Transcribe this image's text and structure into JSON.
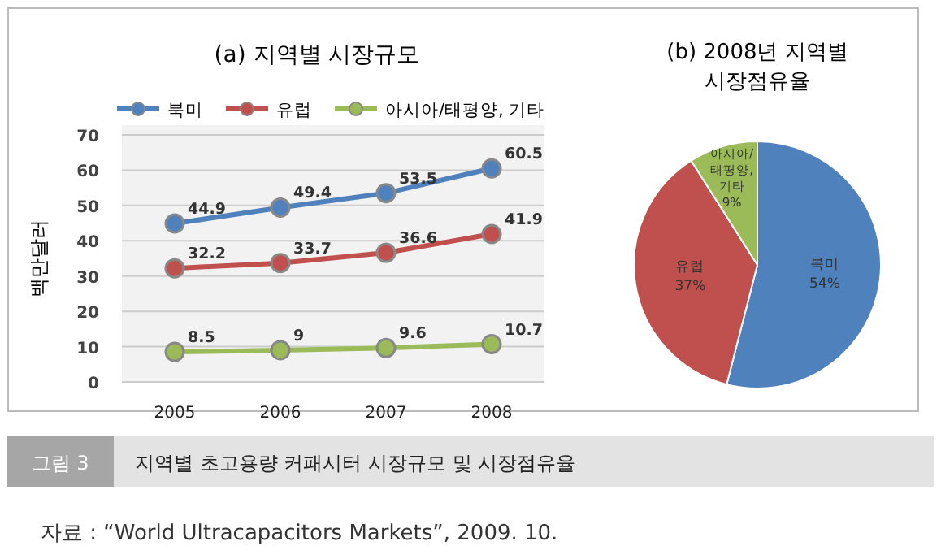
{
  "chart_data": [
    {
      "type": "line",
      "title": "(a) 지역별 시장규모",
      "ylabel": "백만달러",
      "categories": [
        "2005",
        "2006",
        "2007",
        "2008"
      ],
      "series": [
        {
          "name": "북미",
          "color": "#4f81bd",
          "values": [
            44.9,
            49.4,
            53.5,
            60.5
          ]
        },
        {
          "name": "유럽",
          "color": "#c0504d",
          "values": [
            32.2,
            33.7,
            36.6,
            41.9
          ]
        },
        {
          "name": "아시아/태평양, 기타",
          "color": "#9bbb59",
          "values": [
            8.5,
            9,
            9.6,
            10.7
          ]
        }
      ],
      "ylim": [
        0,
        70
      ],
      "yticks": [
        0,
        10,
        20,
        30,
        40,
        50,
        60,
        70
      ],
      "grid": "y",
      "legend": "top",
      "marker": "circle",
      "data_labels": true,
      "annotations": [
        "그림 3",
        "지역별 초고용량 커패시터 시장규모 및 시장점유율",
        "자료 : “World Ultracapacitors Markets”, 2009. 10."
      ]
    },
    {
      "type": "pie",
      "title": "(b) 2008년 지역별 시장점유율",
      "categories": [
        "북미",
        "유럽",
        "아시아/태평양, 기타"
      ],
      "values": [
        54,
        37,
        9
      ],
      "colors": [
        "#4f81bd",
        "#c0504d",
        "#9bbb59"
      ],
      "value_labels": [
        "54%",
        "37%",
        "9%"
      ]
    }
  ]
}
